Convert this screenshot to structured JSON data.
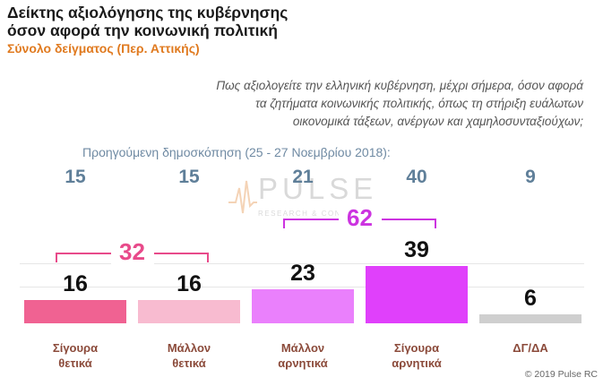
{
  "header": {
    "title_line1": "Δείκτης αξιολόγησης της κυβέρνησης",
    "title_line2": "όσον αφορά την κοινωνική πολιτική",
    "subtitle": "Σύνολο δείγματος (Περ. Αττικής)"
  },
  "question": {
    "line1": "Πως αξιολογείτε την ελληνική κυβέρνηση, μέχρι σήμερα, όσον αφορά",
    "line2": "τα ζητήματα κοινωνικής πολιτικής, όπως τη στήριξη ευάλωτων",
    "line3": "οικονομικά τάξεων, ανέργων και χαμηλοσυνταξιούχων;"
  },
  "previous_survey_label": "Προηγούμενη δημοσκόπηση (25 - 27  Νοεμβρίου  2018):",
  "watermark": {
    "text": "PULSE",
    "subtext": "RESEARCH & CONSULTING"
  },
  "copyright": "© 2019 Pulse RC",
  "chart_data": {
    "type": "bar",
    "categories": [
      {
        "line1": "Σίγουρα",
        "line2": "θετικά"
      },
      {
        "line1": "Μάλλον",
        "line2": "θετικά"
      },
      {
        "line1": "Μάλλον",
        "line2": "αρνητικά"
      },
      {
        "line1": "Σίγουρα",
        "line2": "αρνητικά"
      },
      {
        "line1": "ΔΓ/ΔΑ",
        "line2": ""
      }
    ],
    "values": [
      16,
      16,
      23,
      39,
      6
    ],
    "previous_values": [
      15,
      15,
      21,
      40,
      9
    ],
    "colors": [
      "#f06292",
      "#f8bbd0",
      "#ea80fc",
      "#e040fb",
      "#cfcfcf"
    ],
    "groups": [
      {
        "label": "32",
        "value": 32,
        "from": 0,
        "to": 1,
        "color": "#e84a8a"
      },
      {
        "label": "62",
        "value": 62,
        "from": 2,
        "to": 3,
        "color": "#cc33e0"
      }
    ],
    "ylim": [
      0,
      40
    ]
  }
}
